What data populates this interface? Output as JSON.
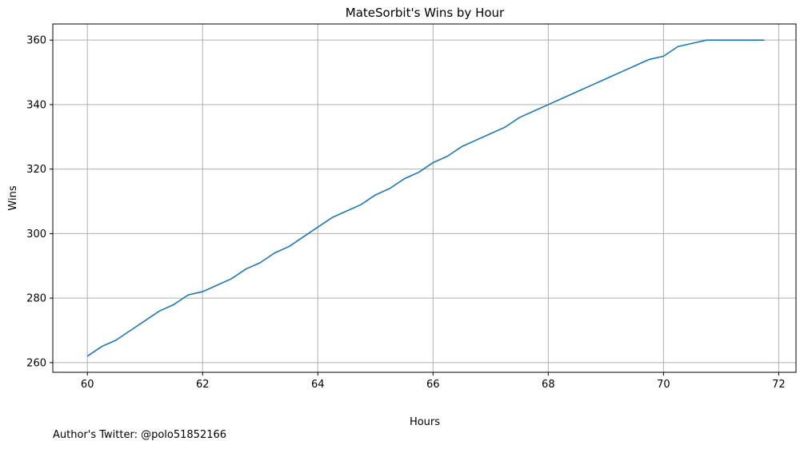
{
  "chart_data": {
    "type": "line",
    "title": "MateSorbit's Wins by Hour",
    "xlabel": "Hours",
    "ylabel": "Wins",
    "xlim": [
      59.4,
      72.3
    ],
    "ylim": [
      257,
      365
    ],
    "xticks": [
      60,
      62,
      64,
      66,
      68,
      70,
      72
    ],
    "yticks": [
      260,
      280,
      300,
      320,
      340,
      360
    ],
    "grid": true,
    "line_color": "#1f77b4",
    "series": [
      {
        "x": [
          60.0,
          60.25,
          60.5,
          60.75,
          61.0,
          61.25,
          61.5,
          61.75,
          62.0,
          62.25,
          62.5,
          62.75,
          63.0,
          63.25,
          63.5,
          63.75,
          64.0,
          64.25,
          64.5,
          64.75,
          65.0,
          65.25,
          65.5,
          65.75,
          66.0,
          66.25,
          66.5,
          66.75,
          67.0,
          67.25,
          67.5,
          67.75,
          68.0,
          68.25,
          68.5,
          68.75,
          69.0,
          69.25,
          69.5,
          69.75,
          70.0,
          70.25,
          70.5,
          70.75,
          71.0,
          71.25,
          71.5,
          71.75
        ],
        "y": [
          262,
          265,
          267,
          270,
          273,
          276,
          278,
          281,
          282,
          284,
          286,
          289,
          291,
          294,
          296,
          299,
          302,
          305,
          307,
          309,
          312,
          314,
          317,
          319,
          322,
          324,
          327,
          329,
          331,
          333,
          336,
          338,
          340,
          342,
          344,
          346,
          348,
          350,
          352,
          354,
          355,
          358,
          359,
          360,
          360,
          360,
          360,
          360
        ]
      }
    ]
  },
  "footer": {
    "text": "Author's Twitter: @polo51852166"
  }
}
